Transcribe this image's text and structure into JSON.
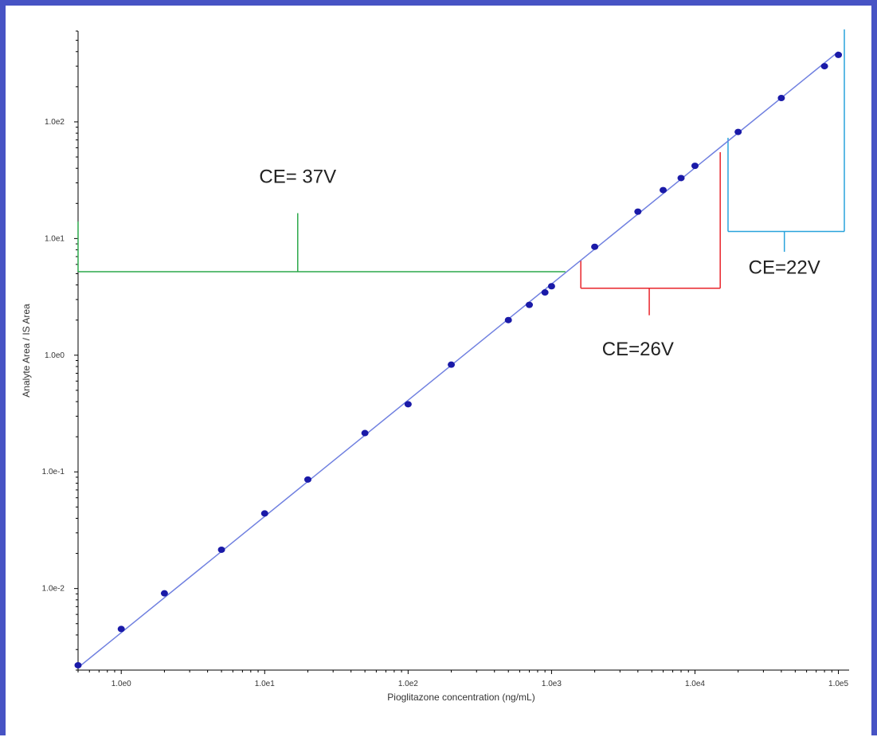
{
  "chart_data": {
    "type": "scatter",
    "title": "",
    "xlabel": "Pioglitazone concentration (ng/mL)",
    "ylabel": "Analyte Area / IS Area",
    "xscale": "log",
    "yscale": "log",
    "xlim": [
      0.5,
      110000
    ],
    "ylim": [
      0.002,
      600
    ],
    "x_ticks": [
      1,
      10,
      100,
      1000,
      10000,
      100000
    ],
    "x_tick_labels": [
      "1.0e0",
      "1.0e1",
      "1.0e2",
      "1.0e3",
      "1.0e4",
      "1.0e5"
    ],
    "y_ticks": [
      0.01,
      0.1,
      1,
      10,
      100
    ],
    "y_tick_labels": [
      "1.0e-2",
      "1.0e-1",
      "1.0e0",
      "1.0e1",
      "1.0e2"
    ],
    "grid": false,
    "legend": "none",
    "points": [
      {
        "x": 0.5,
        "y": 0.0022
      },
      {
        "x": 1,
        "y": 0.0045
      },
      {
        "x": 2,
        "y": 0.0091
      },
      {
        "x": 5,
        "y": 0.0215
      },
      {
        "x": 10,
        "y": 0.044
      },
      {
        "x": 20,
        "y": 0.086
      },
      {
        "x": 50,
        "y": 0.215
      },
      {
        "x": 100,
        "y": 0.38
      },
      {
        "x": 200,
        "y": 0.83
      },
      {
        "x": 500,
        "y": 2.0
      },
      {
        "x": 700,
        "y": 2.7
      },
      {
        "x": 900,
        "y": 3.45
      },
      {
        "x": 1000,
        "y": 3.9
      },
      {
        "x": 2000,
        "y": 8.5
      },
      {
        "x": 4000,
        "y": 17
      },
      {
        "x": 6000,
        "y": 26
      },
      {
        "x": 8000,
        "y": 33
      },
      {
        "x": 10000,
        "y": 42
      },
      {
        "x": 20000,
        "y": 82
      },
      {
        "x": 40000,
        "y": 160
      },
      {
        "x": 80000,
        "y": 300
      },
      {
        "x": 100000,
        "y": 375
      }
    ],
    "fit_line": {
      "x": [
        0.5,
        100000
      ],
      "y": [
        0.0021,
        400
      ]
    },
    "colors": {
      "points": "#1a1aa8",
      "fit_line": "#7080e0",
      "axis": "#000000",
      "ce37": "#2ca94a",
      "ce26": "#e8232a",
      "ce22": "#29a3dc",
      "frame": "#4753c4"
    },
    "annotations": [
      {
        "label": "CE= 37V",
        "color_key": "ce37",
        "range_x": [
          0.5,
          1250
        ],
        "baseline_y": 5.2,
        "end_tick_to_y": 14,
        "stem_x": 17,
        "stem_to_y": 16.5,
        "text_x": 17,
        "text_y": 30
      },
      {
        "label": "CE=26V",
        "color_key": "ce26",
        "range_x": [
          1600,
          15000
        ],
        "baseline_y": 3.75,
        "left_tick_to_y": 6.5,
        "right_tick_to_y": 55,
        "stem_x": 4800,
        "stem_to_y": 2.2,
        "text_x": 4000,
        "text_y": 1.0
      },
      {
        "label": "CE=22V",
        "color_key": "ce22",
        "range_x": [
          17000,
          110000
        ],
        "baseline_y": 11.5,
        "left_tick_to_y": 73,
        "right_tick_to_y": 620,
        "stem_x": 42000,
        "stem_to_y": 7.7,
        "text_x": 42000,
        "text_y": 5.0
      }
    ]
  }
}
